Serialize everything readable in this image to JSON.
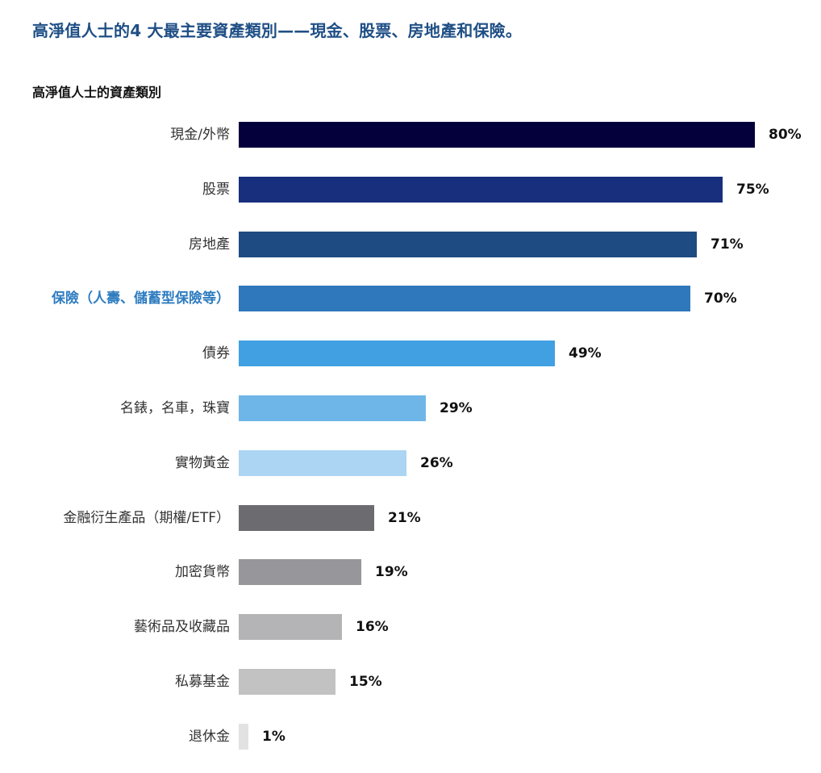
{
  "title": "高淨值人士的4 大最主要資產類別——現金、股票、房地產和保險。",
  "subtitle": "高淨值人士的資產類別",
  "chart_data": {
    "type": "bar",
    "orientation": "horizontal",
    "title": "高淨值人士的資產類別",
    "xlabel": "",
    "ylabel": "",
    "xlim": [
      0,
      80
    ],
    "grid": false,
    "legend": "none",
    "categories": [
      "現金/外幣",
      "股票",
      "房地產",
      "保險（人壽、儲蓄型保險等）",
      "債券",
      "名錶，名車，珠寶",
      "實物黃金",
      "金融衍生產品（期權/ETF）",
      "加密貨幣",
      "藝術品及收藏品",
      "私募基金",
      "退休金"
    ],
    "values": [
      80,
      75,
      71,
      70,
      49,
      29,
      26,
      21,
      19,
      16,
      15,
      1
    ],
    "value_labels": [
      "80%",
      "75%",
      "71%",
      "70%",
      "49%",
      "29%",
      "26%",
      "21%",
      "19%",
      "16%",
      "15%",
      "1%"
    ],
    "colors": [
      "#03003b",
      "#172f7c",
      "#1e4b82",
      "#2f78bb",
      "#40a0e2",
      "#6fb6e8",
      "#acd4f3",
      "#6b6b70",
      "#97979b",
      "#b4b4b6",
      "#c2c2c2",
      "#e2e2e2"
    ],
    "highlighted_category": "保險（人壽、儲蓄型保險等）",
    "highlight_color": "#2e7cc0"
  }
}
